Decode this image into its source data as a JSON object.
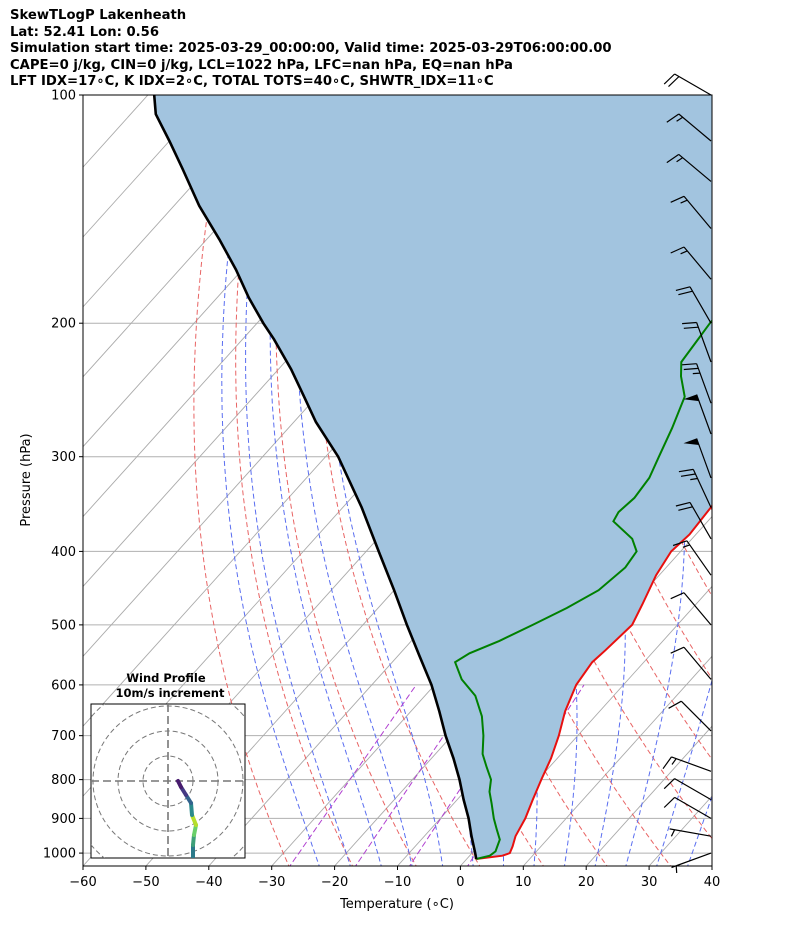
{
  "header": {
    "line1": "SkewTLogP Lakenheath",
    "line2": "Lat: 52.41   Lon: 0.56",
    "line3": "Simulation start time: 2025-03-29_00:00:00, Valid time: 2025-03-29T06:00:00.00",
    "line4": "CAPE=0 j/kg, CIN=0 j/kg, LCL=1022 hPa, LFC=nan hPa, EQ=nan hPa",
    "line5": "LFT IDX=17∘C, K IDX=2∘C, TOTAL TOTS=40∘C, SHWTR_IDX=11∘C"
  },
  "hodograph": {
    "title": "Wind Profile",
    "subtitle": "10m/s increment"
  },
  "colors": {
    "temperature": "#e8100f",
    "dewpoint": "#008000",
    "parcel": "#000000",
    "shading": "#a2c4df",
    "dry_adiabat": "#e86464",
    "moist_adiabat": "#5a6ef0",
    "mixing_ratio": "#b040d0",
    "isotherm": "#aaaaaa"
  },
  "chart_data": {
    "type": "line",
    "title": "SkewTLogP Lakenheath",
    "xlabel": "Temperature (∘C)",
    "ylabel": "Pressure (hPa)",
    "xlim": [
      -60,
      40
    ],
    "ylim": [
      1040,
      100
    ],
    "y_scale": "log",
    "x_ticks": [
      "−60",
      "−50",
      "−40",
      "−30",
      "−20",
      "−10",
      "0",
      "10",
      "20",
      "30",
      "40"
    ],
    "y_ticks": [
      "100",
      "200",
      "300",
      "400",
      "500",
      "600",
      "700",
      "800",
      "900",
      "1000"
    ],
    "grid": true,
    "series": [
      {
        "key": "temperature",
        "points": [
          [
            1.5,
            1018
          ],
          [
            5.2,
            1008
          ],
          [
            6.0,
            1000
          ],
          [
            5.5,
            980
          ],
          [
            4.5,
            950
          ],
          [
            3.5,
            900
          ],
          [
            2.0,
            850
          ],
          [
            0.5,
            800
          ],
          [
            -1,
            750
          ],
          [
            -3,
            700
          ],
          [
            -5.5,
            650
          ],
          [
            -7.5,
            600
          ],
          [
            -8.2,
            560
          ],
          [
            -7.8,
            540
          ],
          [
            -7.2,
            500
          ],
          [
            -8.5,
            470
          ],
          [
            -10.5,
            430
          ],
          [
            -11.5,
            400
          ],
          [
            -11,
            380
          ],
          [
            -11.5,
            350
          ],
          [
            -12,
            320
          ],
          [
            -12.5,
            300
          ],
          [
            -13.5,
            280
          ],
          [
            -14.5,
            260
          ],
          [
            -14.0,
            245
          ],
          [
            -14.0,
            230
          ],
          [
            -14.0,
            215
          ],
          [
            -13.5,
            205
          ],
          [
            -12.5,
            190
          ],
          [
            -12.0,
            175
          ],
          [
            -11.5,
            160
          ],
          [
            -11.2,
            145
          ],
          [
            -10.8,
            133
          ],
          [
            -10.5,
            124
          ],
          [
            -10.0,
            117
          ],
          [
            -9.5,
            110
          ],
          [
            -9.3,
            105
          ],
          [
            -9.0,
            100
          ]
        ]
      },
      {
        "key": "dewpoint",
        "points": [
          [
            1.5,
            1018
          ],
          [
            3.2,
            1008
          ],
          [
            3.5,
            995
          ],
          [
            2.5,
            960
          ],
          [
            0.5,
            930
          ],
          [
            -1.5,
            900
          ],
          [
            -4.0,
            860
          ],
          [
            -6.0,
            830
          ],
          [
            -7.5,
            800
          ],
          [
            -10,
            770
          ],
          [
            -12.5,
            740
          ],
          [
            -15.0,
            700
          ],
          [
            -18.0,
            660
          ],
          [
            -22.0,
            620
          ],
          [
            -26.5,
            590
          ],
          [
            -30.0,
            560
          ],
          [
            -29.0,
            545
          ],
          [
            -26.0,
            525
          ],
          [
            -23.0,
            500
          ],
          [
            -20.0,
            475
          ],
          [
            -17.5,
            450
          ],
          [
            -16.5,
            420
          ],
          [
            -17.0,
            400
          ],
          [
            -19.5,
            385
          ],
          [
            -25.0,
            365
          ],
          [
            -25.5,
            355
          ],
          [
            -25.0,
            340
          ],
          [
            -25.5,
            320
          ],
          [
            -27.0,
            300
          ],
          [
            -29.0,
            275
          ],
          [
            -31.5,
            250
          ],
          [
            -35.0,
            235
          ],
          [
            -37.0,
            225
          ],
          [
            -37.5,
            212
          ],
          [
            -38.0,
            200
          ],
          [
            -38.0,
            190
          ],
          [
            -37.5,
            183
          ],
          [
            -37.5,
            175
          ],
          [
            -36.0,
            165
          ],
          [
            -33.5,
            150
          ],
          [
            -31.0,
            135
          ],
          [
            -29.0,
            124
          ],
          [
            -27.0,
            114
          ],
          [
            -25.0,
            106
          ],
          [
            -24.0,
            100
          ]
        ]
      },
      {
        "key": "parcel",
        "points": [
          [
            1.5,
            1018
          ],
          [
            0.5,
            1000
          ],
          [
            -2.5,
            950
          ],
          [
            -5.5,
            900
          ],
          [
            -9.0,
            850
          ],
          [
            -12.5,
            800
          ],
          [
            -16.5,
            750
          ],
          [
            -21.0,
            700
          ],
          [
            -25.5,
            650
          ],
          [
            -30.5,
            600
          ],
          [
            -36.5,
            550
          ],
          [
            -43.0,
            500
          ],
          [
            -50.0,
            450
          ],
          [
            -58.0,
            400
          ],
          [
            -67.0,
            350
          ],
          [
            -78.0,
            300
          ],
          [
            -86.5,
            270
          ],
          [
            -92.0,
            250
          ],
          [
            -98.0,
            230
          ],
          [
            -105.0,
            210
          ],
          [
            -109.0,
            200
          ],
          [
            -115.0,
            185
          ],
          [
            -121.0,
            170
          ],
          [
            -128.0,
            155
          ],
          [
            -136.0,
            140
          ],
          [
            -144.0,
            125
          ],
          [
            -150.0,
            115
          ],
          [
            -156.0,
            106
          ],
          [
            -159.0,
            100
          ]
        ]
      }
    ],
    "wind_barbs": [
      {
        "p": 100,
        "dir": 300,
        "spd": 20
      },
      {
        "p": 115,
        "dir": 310,
        "spd": 15
      },
      {
        "p": 130,
        "dir": 310,
        "spd": 15
      },
      {
        "p": 150,
        "dir": 320,
        "spd": 15
      },
      {
        "p": 175,
        "dir": 320,
        "spd": 15
      },
      {
        "p": 200,
        "dir": 330,
        "spd": 20
      },
      {
        "p": 225,
        "dir": 340,
        "spd": 20
      },
      {
        "p": 255,
        "dir": 340,
        "spd": 25
      },
      {
        "p": 280,
        "dir": 340,
        "spd": 50
      },
      {
        "p": 320,
        "dir": 340,
        "spd": 50
      },
      {
        "p": 350,
        "dir": 335,
        "spd": 25
      },
      {
        "p": 385,
        "dir": 330,
        "spd": 20
      },
      {
        "p": 430,
        "dir": 325,
        "spd": 15
      },
      {
        "p": 500,
        "dir": 320,
        "spd": 10
      },
      {
        "p": 590,
        "dir": 320,
        "spd": 10
      },
      {
        "p": 690,
        "dir": 315,
        "spd": 10
      },
      {
        "p": 780,
        "dir": 290,
        "spd": 15
      },
      {
        "p": 850,
        "dir": 300,
        "spd": 10
      },
      {
        "p": 900,
        "dir": 300,
        "spd": 10
      },
      {
        "p": 950,
        "dir": 280,
        "spd": 5
      },
      {
        "p": 1000,
        "dir": 250,
        "spd": 5
      }
    ]
  }
}
